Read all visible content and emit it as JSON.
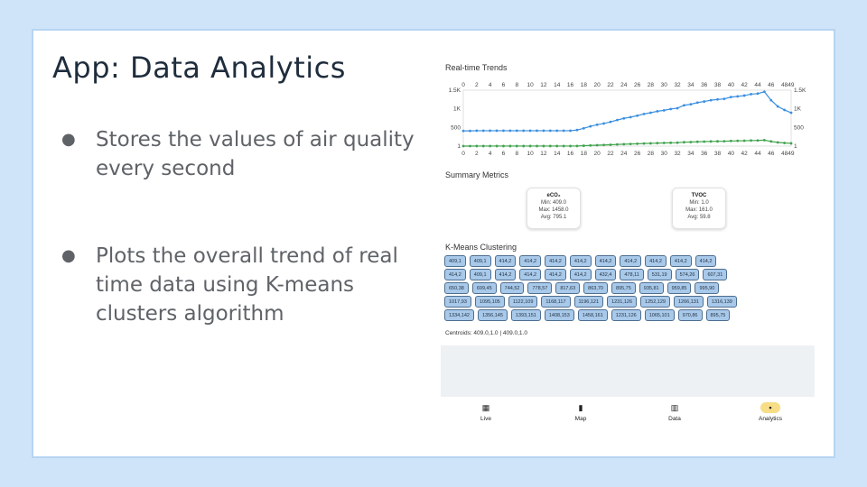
{
  "slide": {
    "title": "App: Data Analytics",
    "bullets": [
      "Stores the values of air quality every second",
      "Plots the overall trend of real time data using K-means clusters algorithm"
    ],
    "bullet_symbol": "●"
  },
  "app": {
    "realtime_title": "Real-time Trends",
    "summary_title": "Summary Metrics",
    "kmeans_title": "K-Means Clustering",
    "metrics": [
      {
        "name": "eCO₂",
        "min": "Min: 409.0",
        "max": "Max: 1458.0",
        "avg": "Avg: 795.1"
      },
      {
        "name": "TVOC",
        "min": "Min: 1.0",
        "max": "Max: 161.0",
        "avg": "Avg: 59.8"
      }
    ],
    "clusters": [
      [
        "409,1",
        "409,1",
        "414,2",
        "414,2",
        "414,2",
        "414,2",
        "414,2",
        "414,2",
        "414,2",
        "414,2",
        "414,2"
      ],
      [
        "414,2",
        "409,1",
        "414,2",
        "414,2",
        "414,2",
        "414,2",
        "432,4",
        "478,11",
        "531,19",
        "574,26",
        "607,31"
      ],
      [
        "650,38",
        "699,45",
        "744,52",
        "778,57",
        "817,63",
        "863,70",
        "895,75",
        "935,81",
        "959,85",
        "995,90"
      ],
      [
        "1017,93",
        "1095,105",
        "1122,109",
        "1168,117",
        "1196,121",
        "1231,126",
        "1252,129",
        "1266,131",
        "1316,139"
      ],
      [
        "1334,142",
        "1356,145",
        "1393,151",
        "1408,153",
        "1458,161",
        "1231,126",
        "1065,101",
        "970,86",
        "895,75"
      ]
    ],
    "centroids": "Centroids: 409.0,1.0 | 409.0,1.0",
    "nav": [
      {
        "label": "Live",
        "icon": "qr-code-icon",
        "glyph": "▦"
      },
      {
        "label": "Map",
        "icon": "map-icon",
        "glyph": "▮"
      },
      {
        "label": "Data",
        "icon": "table-icon",
        "glyph": "▥"
      },
      {
        "label": "Analytics",
        "icon": "analytics-icon",
        "glyph": "▪"
      }
    ],
    "active_nav": "Analytics"
  },
  "chart_data": {
    "type": "line",
    "title": "Real-time Trends",
    "x_ticks": [
      "0",
      "2",
      "4",
      "6",
      "8",
      "10",
      "12",
      "14",
      "16",
      "18",
      "20",
      "22",
      "24",
      "26",
      "28",
      "30",
      "32",
      "34",
      "36",
      "38",
      "40",
      "42",
      "44",
      "46",
      "4849"
    ],
    "y_ticks": [
      "1",
      "500",
      "1K",
      "1.5K"
    ],
    "xlim": [
      0,
      49
    ],
    "ylim": [
      1,
      1500
    ],
    "series": [
      {
        "color": "#3b8fe0",
        "values": [
          409,
          409,
          414,
          414,
          414,
          414,
          414,
          414,
          414,
          414,
          414,
          414,
          414,
          414,
          414,
          414,
          414,
          432,
          478,
          531,
          574,
          607,
          650,
          699,
          744,
          778,
          817,
          863,
          895,
          935,
          959,
          995,
          1017,
          1095,
          1122,
          1168,
          1196,
          1231,
          1252,
          1266,
          1316,
          1334,
          1356,
          1393,
          1408,
          1458,
          1231,
          1065,
          970,
          895
        ]
      },
      {
        "color": "#3fa34d",
        "values": [
          1,
          1,
          2,
          2,
          2,
          2,
          2,
          2,
          2,
          2,
          2,
          2,
          2,
          2,
          2,
          2,
          2,
          4,
          11,
          19,
          26,
          31,
          38,
          45,
          52,
          57,
          63,
          70,
          75,
          81,
          85,
          90,
          93,
          105,
          109,
          117,
          121,
          126,
          129,
          131,
          139,
          142,
          145,
          151,
          153,
          161,
          126,
          101,
          86,
          75
        ]
      }
    ],
    "grid": false
  }
}
